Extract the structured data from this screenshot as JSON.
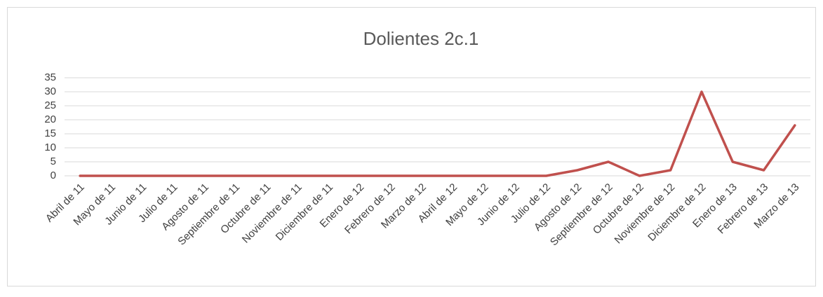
{
  "chart_data": {
    "type": "line",
    "title": "Dolientes 2c.1",
    "categories": [
      "Abril de 11",
      "Mayo de 11",
      "Junio de 11",
      "Julio de 11",
      "Agosto de 11",
      "Septiembre de 11",
      "Octubre de 11",
      "Noviembre de 11",
      "Diciembre de 11",
      "Enero de 12",
      "Febrero de 12",
      "Marzo de 12",
      "Abril de 12",
      "Mayo de 12",
      "Junio de 12",
      "Julio de 12",
      "Agosto de 12",
      "Septiembre de 12",
      "Octubre de 12",
      "Noviembre de 12",
      "Diciembre de 12",
      "Enero de 13",
      "Febrero de 13",
      "Marzo de 13"
    ],
    "values": [
      0,
      0,
      0,
      0,
      0,
      0,
      0,
      0,
      0,
      0,
      0,
      0,
      0,
      0,
      0,
      0,
      2,
      5,
      0,
      2,
      30,
      5,
      2,
      18
    ],
    "color": "#c0504d",
    "ylim": [
      0,
      35
    ],
    "yticks": [
      0,
      5,
      10,
      15,
      20,
      25,
      30,
      35
    ],
    "grid": true
  }
}
